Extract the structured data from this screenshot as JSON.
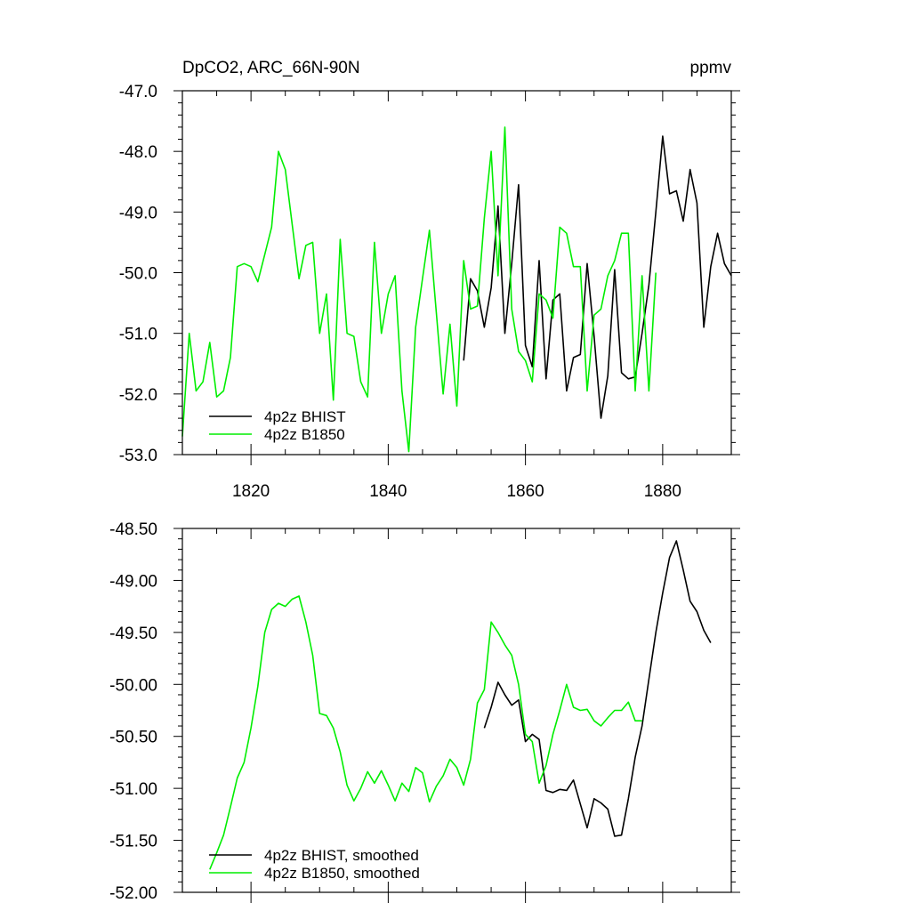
{
  "chart_data": [
    {
      "type": "line",
      "title_left": "DpCO2, ARC_66N-90N",
      "title_right": "ppmv",
      "xlim": [
        1810,
        1890
      ],
      "ylim": [
        -53.0,
        -47.0
      ],
      "x_ticks": [
        1820,
        1840,
        1860,
        1880
      ],
      "x_tick_labels": [
        "1820",
        "1840",
        "1860",
        "1880"
      ],
      "y_ticks": [
        -53.0,
        -52.0,
        -51.0,
        -50.0,
        -49.0,
        -48.0,
        -47.0
      ],
      "y_tick_labels": [
        "-53.0",
        "-52.0",
        "-51.0",
        "-50.0",
        "-49.0",
        "-48.0",
        "-47.0"
      ],
      "legend_position": "bottom-left",
      "series": [
        {
          "name": "4p2z BHIST",
          "color": "#000000",
          "x": [
            1851,
            1852,
            1853,
            1854,
            1855,
            1856,
            1857,
            1858,
            1859,
            1860,
            1861,
            1862,
            1863,
            1864,
            1865,
            1866,
            1867,
            1868,
            1869,
            1870,
            1871,
            1872,
            1873,
            1874,
            1875,
            1876,
            1877,
            1878,
            1879,
            1880,
            1881,
            1882,
            1883,
            1884,
            1885,
            1886,
            1887,
            1888,
            1889,
            1890
          ],
          "values": [
            -51.45,
            -50.1,
            -50.3,
            -50.9,
            -50.25,
            -48.9,
            -51.0,
            -49.85,
            -48.55,
            -51.2,
            -51.55,
            -49.8,
            -51.75,
            -50.45,
            -50.35,
            -51.95,
            -51.4,
            -51.35,
            -49.85,
            -51.05,
            -52.4,
            -51.7,
            -49.95,
            -51.65,
            -51.75,
            -51.72,
            -51.0,
            -50.2,
            -49.0,
            -47.75,
            -48.7,
            -48.65,
            -49.15,
            -48.3,
            -48.85,
            -50.9,
            -49.9,
            -49.35,
            -49.85,
            -50.05
          ]
        },
        {
          "name": "4p2z B1850",
          "color": "#00ee00",
          "x": [
            1810,
            1811,
            1812,
            1813,
            1814,
            1815,
            1816,
            1817,
            1818,
            1819,
            1820,
            1821,
            1822,
            1823,
            1824,
            1825,
            1826,
            1827,
            1828,
            1829,
            1830,
            1831,
            1832,
            1833,
            1834,
            1835,
            1836,
            1837,
            1838,
            1839,
            1840,
            1841,
            1842,
            1843,
            1844,
            1845,
            1846,
            1847,
            1848,
            1849,
            1850,
            1851,
            1852,
            1853,
            1854,
            1855,
            1856,
            1857,
            1858,
            1859,
            1860,
            1861,
            1862,
            1863,
            1864,
            1865,
            1866,
            1867,
            1868,
            1869,
            1870,
            1871,
            1872,
            1873,
            1874,
            1875,
            1876,
            1877,
            1878,
            1879,
            1880
          ],
          "values": [
            -52.7,
            -51.0,
            -51.95,
            -51.8,
            -51.15,
            -52.05,
            -51.95,
            -51.4,
            -49.9,
            -49.85,
            -49.9,
            -50.15,
            -49.7,
            -49.25,
            -48.0,
            -48.3,
            -49.2,
            -50.1,
            -49.55,
            -49.5,
            -51.0,
            -50.35,
            -52.1,
            -49.45,
            -51.0,
            -51.05,
            -51.8,
            -52.05,
            -49.5,
            -51.0,
            -50.35,
            -50.05,
            -51.95,
            -52.95,
            -50.9,
            -50.1,
            -49.3,
            -50.65,
            -52.0,
            -50.85,
            -52.2,
            -49.8,
            -50.6,
            -50.55,
            -49.1,
            -48.0,
            -50.05,
            -47.6,
            -50.6,
            -51.3,
            -51.45,
            -51.8,
            -50.35,
            -50.45,
            -50.75,
            -49.25,
            -49.35,
            -49.9,
            -49.9,
            -51.95,
            -50.7,
            -50.6,
            -50.05,
            -49.8,
            -49.35,
            -49.35,
            -51.95,
            -50.05,
            -51.95,
            -50.0,
            null
          ]
        }
      ]
    },
    {
      "type": "line",
      "xlim": [
        1810,
        1890
      ],
      "ylim": [
        -52.0,
        -48.5
      ],
      "x_ticks": [
        1820,
        1840,
        1860,
        1880
      ],
      "y_ticks": [
        -52.0,
        -51.5,
        -51.0,
        -50.5,
        -50.0,
        -49.5,
        -49.0,
        -48.5
      ],
      "y_tick_labels": [
        "-52.00",
        "-51.50",
        "-51.00",
        "-50.50",
        "-50.00",
        "-49.50",
        "-49.00",
        "-48.50"
      ],
      "legend_position": "bottom-left",
      "series": [
        {
          "name": "4p2z BHIST, smoothed",
          "color": "#000000",
          "x": [
            1854,
            1855,
            1856,
            1857,
            1858,
            1859,
            1860,
            1861,
            1862,
            1863,
            1864,
            1865,
            1866,
            1867,
            1868,
            1869,
            1870,
            1871,
            1872,
            1873,
            1874,
            1875,
            1876,
            1877,
            1878,
            1879,
            1880,
            1881,
            1882,
            1883,
            1884,
            1885,
            1886,
            1887
          ],
          "values": [
            -50.42,
            -50.22,
            -49.98,
            -50.1,
            -50.2,
            -50.15,
            -50.55,
            -50.48,
            -50.53,
            -51.02,
            -51.04,
            -51.01,
            -51.02,
            -50.92,
            -51.15,
            -51.38,
            -51.1,
            -51.14,
            -51.2,
            -51.46,
            -51.45,
            -51.1,
            -50.7,
            -50.4,
            -49.95,
            -49.5,
            -49.12,
            -48.78,
            -48.62,
            -48.9,
            -49.2,
            -49.3,
            -49.48,
            -49.6
          ]
        },
        {
          "name": "4p2z B1850, smoothed",
          "color": "#00ee00",
          "x": [
            1814,
            1815,
            1816,
            1817,
            1818,
            1819,
            1820,
            1821,
            1822,
            1823,
            1824,
            1825,
            1826,
            1827,
            1828,
            1829,
            1830,
            1831,
            1832,
            1833,
            1834,
            1835,
            1836,
            1837,
            1838,
            1839,
            1840,
            1841,
            1842,
            1843,
            1844,
            1845,
            1846,
            1847,
            1848,
            1849,
            1850,
            1851,
            1852,
            1853,
            1854,
            1855,
            1856,
            1857,
            1858,
            1859,
            1860,
            1861,
            1862,
            1863,
            1864,
            1865,
            1866,
            1867,
            1868,
            1869,
            1870,
            1871,
            1872,
            1873,
            1874,
            1875,
            1876,
            1877
          ],
          "values": [
            -51.78,
            -51.62,
            -51.45,
            -51.18,
            -50.9,
            -50.75,
            -50.42,
            -50.02,
            -49.5,
            -49.28,
            -49.22,
            -49.25,
            -49.18,
            -49.15,
            -49.4,
            -49.72,
            -50.28,
            -50.3,
            -50.42,
            -50.65,
            -50.97,
            -51.12,
            -51.0,
            -50.84,
            -50.95,
            -50.83,
            -50.97,
            -51.12,
            -50.95,
            -51.03,
            -50.8,
            -50.85,
            -51.13,
            -50.98,
            -50.88,
            -50.72,
            -50.8,
            -50.97,
            -50.72,
            -50.18,
            -50.05,
            -49.4,
            -49.5,
            -49.62,
            -49.72,
            -50.0,
            -50.48,
            -50.55,
            -50.95,
            -50.78,
            -50.48,
            -50.25,
            -50.0,
            -50.22,
            -50.25,
            -50.24,
            -50.35,
            -50.4,
            -50.32,
            -50.25,
            -50.25,
            -50.17,
            -50.35,
            -50.35
          ]
        }
      ]
    }
  ]
}
